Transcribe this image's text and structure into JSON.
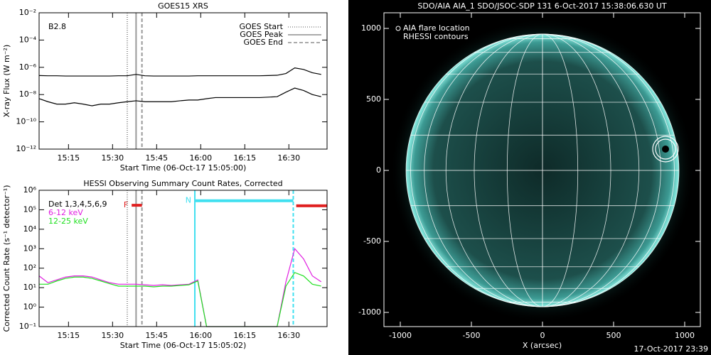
{
  "chart_data": [
    {
      "type": "line",
      "title": "GOES15 XRS",
      "x_label": "Start Time (06-Oct-17 15:05:00)",
      "y_label": "X-ray Flux (W m⁻²)",
      "annotation": "B2.8",
      "log_y": true,
      "xlim": [
        905,
        1003
      ],
      "ylim": [
        1e-12,
        0.01
      ],
      "xticks": [
        {
          "value": 915,
          "label": "15:15"
        },
        {
          "value": 930,
          "label": "15:30"
        },
        {
          "value": 945,
          "label": "15:45"
        },
        {
          "value": 960,
          "label": "16:00"
        },
        {
          "value": 975,
          "label": "16:15"
        },
        {
          "value": 990,
          "label": "16:30"
        }
      ],
      "yticks": [
        {
          "value": 0.01,
          "label": "10⁻²"
        },
        {
          "value": 0.0001,
          "label": "10⁻⁴"
        },
        {
          "value": 1e-06,
          "label": "10⁻⁶"
        },
        {
          "value": 1e-08,
          "label": "10⁻⁸"
        },
        {
          "value": 1e-10,
          "label": "10⁻¹⁰"
        },
        {
          "value": 1e-12,
          "label": "10⁻¹²"
        }
      ],
      "x": [
        905,
        908,
        911,
        914,
        917,
        920,
        923,
        926,
        929,
        932,
        935,
        938,
        941,
        944,
        947,
        950,
        953,
        956,
        959,
        962,
        965,
        968,
        971,
        974,
        977,
        980,
        983,
        986,
        989,
        992,
        995,
        998,
        1001
      ],
      "series": [
        {
          "color": "#000000",
          "values": [
            2.5e-07,
            2.4e-07,
            2.4e-07,
            2.3e-07,
            2.3e-07,
            2.3e-07,
            2.3e-07,
            2.3e-07,
            2.3e-07,
            2.4e-07,
            2.4e-07,
            3e-07,
            2.4e-07,
            2.3e-07,
            2.3e-07,
            2.3e-07,
            2.3e-07,
            2.3e-07,
            2.4e-07,
            2.4e-07,
            2.4e-07,
            2.4e-07,
            2.4e-07,
            2.4e-07,
            2.4e-07,
            2.4e-07,
            2.5e-07,
            2.6e-07,
            3.5e-07,
            9e-07,
            7e-07,
            4e-07,
            3e-07
          ]
        },
        {
          "color": "#000000",
          "values": [
            5e-09,
            3e-09,
            2e-09,
            2e-09,
            2.5e-09,
            2e-09,
            1.5e-09,
            2e-09,
            2e-09,
            2.5e-09,
            3e-09,
            3.5e-09,
            3e-09,
            3e-09,
            3e-09,
            3e-09,
            3.5e-09,
            4e-09,
            4e-09,
            5e-09,
            6e-09,
            6e-09,
            6e-09,
            6e-09,
            6e-09,
            6e-09,
            6.5e-09,
            7e-09,
            1.5e-08,
            3e-08,
            2e-08,
            1e-08,
            7e-09
          ]
        }
      ],
      "markers": [
        {
          "name": "GOES Start",
          "x": 935,
          "style": "dotted",
          "color": "#999999"
        },
        {
          "name": "GOES Peak",
          "x": 938,
          "style": "solid",
          "color": "#999999"
        },
        {
          "name": "GOES End",
          "x": 940,
          "style": "dashed",
          "color": "#999999"
        }
      ]
    },
    {
      "type": "line",
      "title": "HESSI Observing Summary Count Rates, Corrected",
      "x_label": "Start Time (06-Oct-17 15:05:02)",
      "y_label": "Corrected Count Rate (s⁻¹ detector⁻¹)",
      "annotation": "Det 1,3,4,5,6,9",
      "log_y": true,
      "xlim": [
        905,
        1003
      ],
      "ylim": [
        0.1,
        1000000
      ],
      "xticks": [
        {
          "value": 915,
          "label": "15:15"
        },
        {
          "value": 930,
          "label": "15:30"
        },
        {
          "value": 945,
          "label": "15:45"
        },
        {
          "value": 960,
          "label": "16:00"
        },
        {
          "value": 975,
          "label": "16:15"
        },
        {
          "value": 990,
          "label": "16:30"
        }
      ],
      "yticks": [
        {
          "value": 0.1,
          "label": "10⁻¹"
        },
        {
          "value": 1,
          "label": "10⁰"
        },
        {
          "value": 10,
          "label": "10¹"
        },
        {
          "value": 100,
          "label": "10²"
        },
        {
          "value": 1000,
          "label": "10³"
        },
        {
          "value": 10000,
          "label": "10⁴"
        },
        {
          "value": 100000,
          "label": "10⁵"
        },
        {
          "value": 1000000,
          "label": "10⁶"
        }
      ],
      "x": [
        905,
        908,
        911,
        914,
        917,
        920,
        923,
        926,
        929,
        932,
        935,
        938,
        941,
        944,
        947,
        950,
        953,
        956,
        959,
        962,
        965,
        968,
        971,
        974,
        977,
        980,
        983,
        986,
        989,
        992,
        995,
        998,
        1001
      ],
      "series": [
        {
          "name": "6-12 keV",
          "color": "#e020e0",
          "values": [
            40,
            18,
            25,
            35,
            40,
            40,
            35,
            25,
            18,
            15,
            15,
            15,
            14,
            13,
            14,
            13,
            14,
            15,
            25,
            0.1,
            0.1,
            0.1,
            0.1,
            0.1,
            0.1,
            0.1,
            0.1,
            0.1,
            20,
            1000,
            300,
            40,
            20
          ]
        },
        {
          "name": "12-25 keV",
          "color": "#20e020",
          "values": [
            15,
            15,
            22,
            30,
            35,
            35,
            30,
            22,
            16,
            12,
            12,
            12,
            12,
            11,
            12,
            12,
            13,
            14,
            22,
            0.1,
            0.1,
            0.1,
            0.1,
            0.1,
            0.1,
            0.1,
            0.1,
            0.1,
            12,
            60,
            40,
            15,
            12
          ]
        }
      ],
      "markers": [
        {
          "x": 935,
          "style": "dotted",
          "color": "#999999"
        },
        {
          "x": 938,
          "style": "solid",
          "color": "#999999"
        },
        {
          "x": 940,
          "style": "dashed",
          "color": "#999999"
        },
        {
          "x": 958,
          "style": "solid",
          "color": "#40e0f0"
        },
        {
          "x": 991.5,
          "style": "dashed",
          "color": "#40e0f0"
        }
      ],
      "intervals": [
        {
          "label": "F",
          "start": 936.5,
          "end": 940,
          "level": 170000,
          "color": "#e02020"
        },
        {
          "label": "N",
          "start": 958,
          "end": 991.5,
          "level": 290000,
          "color": "#40e0f0"
        },
        {
          "start": 992.5,
          "end": 1003,
          "level": 160000,
          "color": "#e02020"
        }
      ]
    },
    {
      "type": "image",
      "title": "SDO/AIA AIA_1 SDO/JSOC-SDP 131  6-Oct-2017 15:38:06.630 UT",
      "x_label": "X (arcsec)",
      "legend": [
        "AIA flare location",
        "RHESSI contours"
      ],
      "footer": "17-Oct-2017 23:39",
      "xlim": [
        -1115,
        1110
      ],
      "ylim": [
        -1100,
        1110
      ],
      "xticks": [
        -1000,
        -500,
        0,
        500,
        1000
      ],
      "yticks": [
        -1000,
        -500,
        0,
        500,
        1000
      ],
      "flare_location": [
        865,
        150
      ]
    }
  ]
}
